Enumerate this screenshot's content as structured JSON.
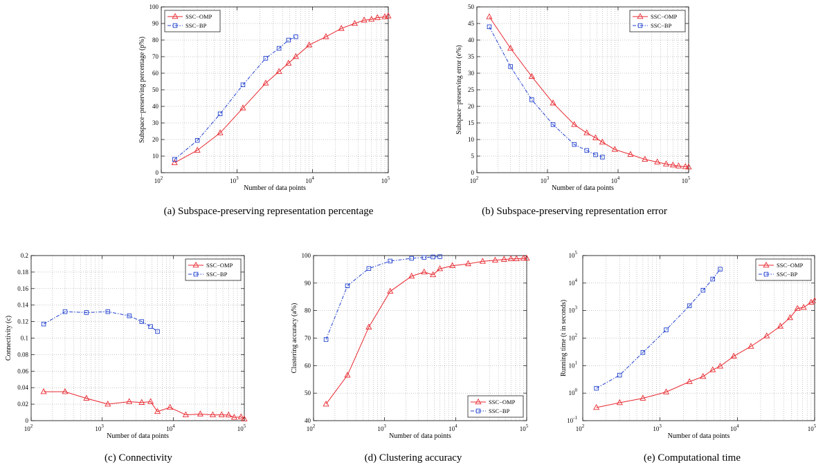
{
  "chart_data": [
    {
      "id": "a",
      "type": "line",
      "caption": "(a)  Subspace-preserving representation percentage",
      "xlabel": "Number of data points",
      "ylabel": "Subspace−preserving percentage (p%)",
      "xscale": "log",
      "xlim": [
        100,
        100000
      ],
      "ylim": [
        0,
        100
      ],
      "yticks": [
        0,
        10,
        20,
        30,
        40,
        50,
        60,
        70,
        80,
        90,
        100
      ],
      "ytick_labels": [
        "0",
        "10",
        "20",
        "30",
        "40",
        "50",
        "60",
        "70",
        "80",
        "90",
        "100"
      ],
      "grid": true,
      "legend_position": "top-left",
      "series": [
        {
          "name": "SSC−OMP",
          "color": "#e8262d",
          "marker": "triangle",
          "dash": "solid",
          "x": [
            150,
            300,
            600,
            1200,
            2400,
            3600,
            4800,
            6000,
            9000,
            15000,
            24000,
            36000,
            48000,
            60000,
            72000,
            90000,
            100000
          ],
          "y": [
            6,
            13.5,
            24,
            39,
            54,
            61,
            66,
            70,
            77,
            82,
            87,
            90,
            92,
            92.5,
            93.5,
            94,
            94.5
          ]
        },
        {
          "name": "SSC−BP",
          "color": "#1f3fce",
          "marker": "square",
          "dash": "dashdot",
          "x": [
            150,
            300,
            600,
            1200,
            2400,
            3600,
            4800,
            6000
          ],
          "y": [
            8,
            19.5,
            35.5,
            53,
            69,
            75,
            80,
            82
          ]
        }
      ]
    },
    {
      "id": "b",
      "type": "line",
      "caption": "(b)  Subspace-preserving representation error",
      "xlabel": "Number of data points",
      "ylabel": "Subspace−preserving error (e%)",
      "xscale": "log",
      "xlim": [
        100,
        100000
      ],
      "ylim": [
        0,
        50
      ],
      "yticks": [
        0,
        5,
        10,
        15,
        20,
        25,
        30,
        35,
        40,
        45,
        50
      ],
      "ytick_labels": [
        "0",
        "5",
        "10",
        "15",
        "20",
        "25",
        "30",
        "35",
        "40",
        "45",
        "50"
      ],
      "grid": true,
      "legend_position": "top-right",
      "series": [
        {
          "name": "SSC−OMP",
          "color": "#e8262d",
          "marker": "triangle",
          "dash": "solid",
          "x": [
            150,
            300,
            600,
            1200,
            2400,
            3600,
            4800,
            6000,
            9000,
            15000,
            24000,
            36000,
            48000,
            60000,
            72000,
            90000,
            100000
          ],
          "y": [
            47,
            37.5,
            29,
            21,
            14.5,
            12,
            10.5,
            9.2,
            7,
            5.5,
            4,
            3.2,
            2.6,
            2.3,
            2,
            1.8,
            1.7
          ]
        },
        {
          "name": "SSC−BP",
          "color": "#1f3fce",
          "marker": "square",
          "dash": "dashdot",
          "x": [
            150,
            300,
            600,
            1200,
            2400,
            3600,
            4800,
            6000
          ],
          "y": [
            44,
            32,
            22,
            14.5,
            8.5,
            6.7,
            5.4,
            4.7
          ]
        }
      ]
    },
    {
      "id": "c",
      "type": "line",
      "caption": "(c)  Connectivity",
      "xlabel": "Number of data points",
      "ylabel": "Connectivity (c)",
      "xscale": "log",
      "xlim": [
        100,
        100000
      ],
      "ylim": [
        0,
        0.2
      ],
      "yticks": [
        0,
        0.02,
        0.04,
        0.06,
        0.08,
        0.1,
        0.12,
        0.14,
        0.16,
        0.18,
        0.2
      ],
      "ytick_labels": [
        "0",
        "0.02",
        "0.04",
        "0.06",
        "0.08",
        "0.1",
        "0.12",
        "0.14",
        "0.16",
        "0.18",
        "0.2"
      ],
      "grid": true,
      "legend_position": "top-right",
      "series": [
        {
          "name": "SSC−OMP",
          "color": "#e8262d",
          "marker": "triangle",
          "dash": "solid",
          "x": [
            150,
            300,
            600,
            1200,
            2400,
            3600,
            4800,
            6000,
            9000,
            15000,
            24000,
            36000,
            48000,
            60000,
            72000,
            90000,
            100000
          ],
          "y": [
            0.035,
            0.035,
            0.027,
            0.02,
            0.023,
            0.022,
            0.023,
            0.011,
            0.016,
            0.007,
            0.008,
            0.007,
            0.007,
            0.0068,
            0.004,
            0.0045,
            0.002
          ]
        },
        {
          "name": "SSC−BP",
          "color": "#1f3fce",
          "marker": "square",
          "dash": "dashdot",
          "x": [
            150,
            300,
            600,
            1200,
            2400,
            3600,
            4800,
            6000
          ],
          "y": [
            0.117,
            0.132,
            0.131,
            0.132,
            0.127,
            0.12,
            0.114,
            0.108
          ]
        }
      ]
    },
    {
      "id": "d",
      "type": "line",
      "caption": "(d)  Clustering accuracy",
      "xlabel": "Number of data points",
      "ylabel": "Clustering accuracy (a%)",
      "xscale": "log",
      "xlim": [
        100,
        100000
      ],
      "ylim": [
        40,
        100
      ],
      "yticks": [
        40,
        50,
        60,
        70,
        80,
        90,
        100
      ],
      "ytick_labels": [
        "40",
        "50",
        "60",
        "70",
        "80",
        "90",
        "100"
      ],
      "grid": true,
      "legend_position": "bottom-right",
      "series": [
        {
          "name": "SSC−OMP",
          "color": "#e8262d",
          "marker": "triangle",
          "dash": "solid",
          "x": [
            150,
            300,
            600,
            1200,
            2400,
            3600,
            4800,
            6000,
            9000,
            15000,
            24000,
            36000,
            48000,
            60000,
            72000,
            90000,
            100000
          ],
          "y": [
            46,
            56.5,
            74,
            87,
            92.5,
            94,
            93,
            95.2,
            96.3,
            97,
            97.9,
            98.3,
            98.6,
            98.8,
            98.8,
            99,
            99
          ]
        },
        {
          "name": "SSC−BP",
          "color": "#1f3fce",
          "marker": "square",
          "dash": "dashdot",
          "x": [
            150,
            300,
            600,
            1200,
            2400,
            3600,
            4800,
            6000
          ],
          "y": [
            69.5,
            89,
            95.3,
            98,
            99,
            99.3,
            99.5,
            99.6
          ]
        }
      ]
    },
    {
      "id": "e",
      "type": "line",
      "caption": "(e)  Computational time",
      "xlabel": "Number of data points",
      "ylabel": "Running time (t in seconds)",
      "xscale": "log",
      "yscale": "log",
      "xlim": [
        100,
        100000
      ],
      "ylim": [
        0.1,
        100000
      ],
      "yticks": [
        0.1,
        1,
        10,
        100,
        1000,
        10000,
        100000
      ],
      "ytick_labels": [
        "10^-1",
        "10^0",
        "10^1",
        "10^2",
        "10^3",
        "10^4",
        "10^5"
      ],
      "grid": true,
      "legend_position": "top-right",
      "series": [
        {
          "name": "SSC−OMP",
          "color": "#e8262d",
          "marker": "triangle",
          "dash": "solid",
          "x": [
            150,
            300,
            600,
            1200,
            2400,
            3600,
            4800,
            6000,
            9000,
            15000,
            24000,
            36000,
            48000,
            60000,
            72000,
            90000,
            100000
          ],
          "y": [
            0.3,
            0.45,
            0.65,
            1.1,
            2.6,
            4,
            7,
            9.5,
            22,
            50,
            120,
            270,
            550,
            1200,
            1300,
            2000,
            2300
          ]
        },
        {
          "name": "SSC−BP",
          "color": "#1f3fce",
          "marker": "square",
          "dash": "dashdot",
          "x": [
            150,
            300,
            600,
            1200,
            2400,
            3600,
            4800,
            6000
          ],
          "y": [
            1.5,
            4.5,
            30,
            200,
            1500,
            5500,
            14000,
            32000
          ]
        }
      ]
    }
  ]
}
